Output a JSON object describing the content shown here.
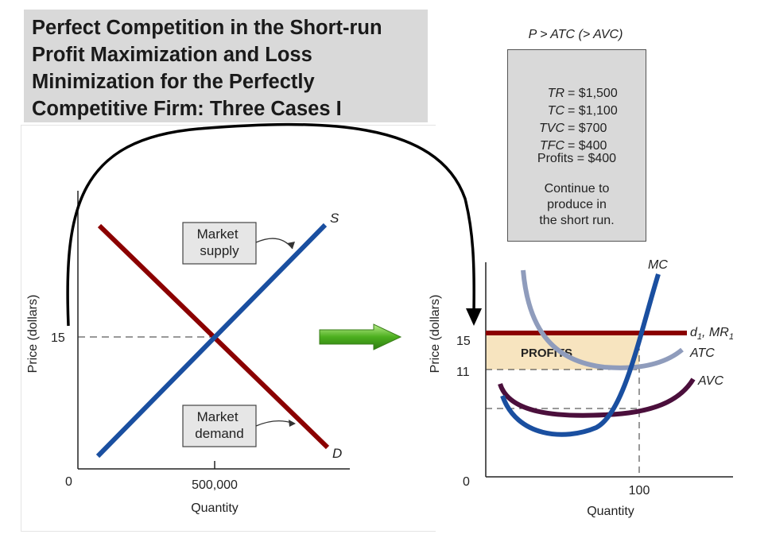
{
  "title": "Perfect Competition in the Short-run\nProfit Maximization and Loss\nMinimization for the Perfectly\nCompetitive Firm: Three Cases I",
  "info_box": {
    "header": "P > ATC (> AVC)",
    "rows": [
      {
        "label": "TR",
        "value": "= $1,500"
      },
      {
        "label": "TC",
        "value": "= $1,100"
      },
      {
        "label": "TVC",
        "value": "= $700"
      },
      {
        "label": "TFC",
        "value": "= $400"
      }
    ],
    "profits": "Profits = $400",
    "note": "Continue to\nproduce in\nthe short run."
  },
  "colors": {
    "demand": "#8b0000",
    "supply": "#1a4fa0",
    "mc": "#1a4fa0",
    "atc": "#8f9cbc",
    "avc": "#4b0f3c",
    "mr": "#8b0000",
    "profits_fill": "#f7e4bf",
    "arrow_green": "#4caf1e"
  },
  "chart_data": [
    {
      "type": "line",
      "xlabel": "Quantity",
      "ylabel": "Price (dollars)",
      "x_ticks": [
        "0",
        "500,000"
      ],
      "y_ticks": [
        "15"
      ],
      "equilibrium": {
        "quantity": 500000,
        "price": 15
      },
      "series": [
        {
          "name": "S",
          "role": "supply"
        },
        {
          "name": "D",
          "role": "demand"
        }
      ],
      "annotations": [
        {
          "text": "Market\nsupply",
          "points_to": "S"
        },
        {
          "text": "Market\ndemand",
          "points_to": "D"
        }
      ]
    },
    {
      "type": "line",
      "xlabel": "Quantity",
      "ylabel": "Price (dollars)",
      "x_ticks": [
        "0",
        "100"
      ],
      "y_ticks": [
        "15",
        "11"
      ],
      "price": 15,
      "atc_at_output": 11,
      "output": 100,
      "series": [
        {
          "name": "MC"
        },
        {
          "name": "ATC"
        },
        {
          "name": "AVC"
        },
        {
          "name": "d1, MR1",
          "label_main": "d",
          "label_sub": "1",
          "label_mid": ", MR",
          "label_sub2": "1"
        }
      ],
      "region_label": "PROFITS"
    }
  ]
}
